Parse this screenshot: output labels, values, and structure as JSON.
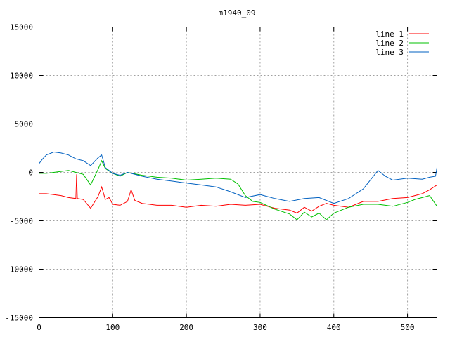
{
  "chart_data": {
    "type": "line",
    "title": "m1940_09",
    "xlabel": "",
    "ylabel": "",
    "xlim": [
      0,
      540
    ],
    "ylim": [
      -15000,
      15000
    ],
    "xticks": [
      0,
      100,
      200,
      300,
      400,
      500
    ],
    "yticks": [
      -15000,
      -10000,
      -5000,
      0,
      5000,
      10000,
      15000
    ],
    "grid": true,
    "legend_position": "top-right",
    "series": [
      {
        "name": "line 1",
        "color": "#ff0000",
        "x": [
          0,
          10,
          20,
          30,
          40,
          50,
          51,
          52,
          60,
          70,
          80,
          85,
          90,
          95,
          100,
          110,
          120,
          125,
          130,
          140,
          150,
          160,
          180,
          200,
          220,
          240,
          260,
          280,
          300,
          320,
          340,
          350,
          360,
          370,
          380,
          390,
          400,
          420,
          440,
          460,
          480,
          500,
          520,
          530,
          540
        ],
        "y": [
          -2200,
          -2200,
          -2300,
          -2400,
          -2600,
          -2700,
          -200,
          -2700,
          -2800,
          -3700,
          -2500,
          -1500,
          -2800,
          -2600,
          -3300,
          -3400,
          -3000,
          -1800,
          -2900,
          -3200,
          -3300,
          -3400,
          -3400,
          -3600,
          -3400,
          -3500,
          -3300,
          -3400,
          -3300,
          -3700,
          -3900,
          -4200,
          -3600,
          -4000,
          -3500,
          -3200,
          -3400,
          -3600,
          -3000,
          -3000,
          -2700,
          -2600,
          -2200,
          -1800,
          -1300
        ]
      },
      {
        "name": "line 2",
        "color": "#00c000",
        "x": [
          0,
          10,
          20,
          30,
          40,
          50,
          60,
          70,
          80,
          85,
          90,
          100,
          110,
          120,
          140,
          160,
          180,
          200,
          220,
          240,
          260,
          270,
          280,
          290,
          300,
          320,
          340,
          350,
          360,
          370,
          380,
          390,
          400,
          420,
          440,
          460,
          480,
          500,
          510,
          520,
          530,
          540
        ],
        "y": [
          -100,
          -100,
          0,
          100,
          200,
          0,
          -200,
          -1300,
          300,
          1200,
          400,
          -100,
          -400,
          0,
          -300,
          -500,
          -600,
          -800,
          -700,
          -600,
          -700,
          -1200,
          -2400,
          -3000,
          -3100,
          -3800,
          -4300,
          -4900,
          -4100,
          -4600,
          -4200,
          -4900,
          -4200,
          -3600,
          -3300,
          -3300,
          -3500,
          -3100,
          -2800,
          -2600,
          -2400,
          -3500
        ]
      },
      {
        "name": "line 3",
        "color": "#0060c0",
        "x": [
          0,
          5,
          10,
          20,
          30,
          40,
          50,
          60,
          70,
          80,
          85,
          90,
          100,
          110,
          120,
          140,
          160,
          180,
          200,
          220,
          240,
          260,
          280,
          300,
          320,
          340,
          360,
          380,
          400,
          420,
          440,
          460,
          470,
          480,
          500,
          520,
          530,
          538,
          540
        ],
        "y": [
          900,
          1400,
          1800,
          2100,
          2000,
          1800,
          1400,
          1200,
          700,
          1500,
          1800,
          500,
          -100,
          -300,
          0,
          -400,
          -700,
          -900,
          -1100,
          -1300,
          -1500,
          -2000,
          -2600,
          -2300,
          -2700,
          -3000,
          -2700,
          -2600,
          -3200,
          -2700,
          -1700,
          200,
          -400,
          -800,
          -600,
          -700,
          -500,
          -400,
          500
        ]
      }
    ]
  }
}
